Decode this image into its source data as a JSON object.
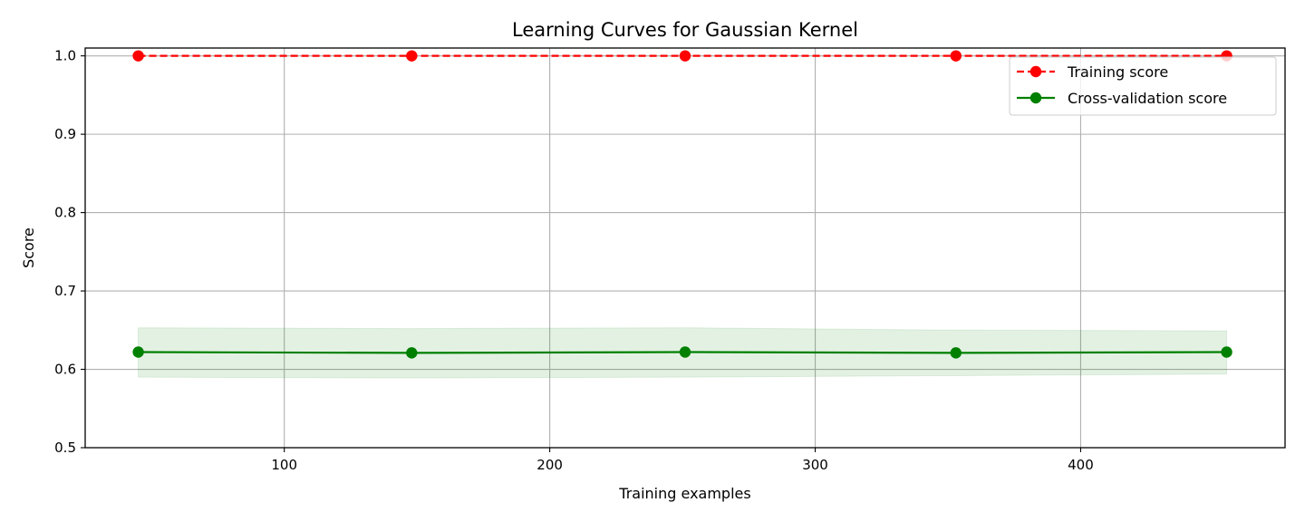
{
  "chart_data": {
    "type": "line",
    "title": "Learning Curves for Gaussian Kernel",
    "xlabel": "Training examples",
    "ylabel": "Score",
    "xlim": [
      25,
      477
    ],
    "ylim": [
      0.5,
      1.01
    ],
    "xticks": [
      100,
      200,
      300,
      400
    ],
    "xtick_labels": [
      "100",
      "200",
      "300",
      "400"
    ],
    "yticks": [
      0.5,
      0.6,
      0.7,
      0.8,
      0.9,
      1.0
    ],
    "ytick_labels": [
      "0.5",
      "0.6",
      "0.7",
      "0.8",
      "0.9",
      "1.0"
    ],
    "grid": true,
    "legend_position": "top-right",
    "x": [
      45,
      148,
      251,
      353,
      455
    ],
    "series": [
      {
        "name": "Training score",
        "color": "#ff0000",
        "line_style": "dashed",
        "marker": "circle",
        "values": [
          1.0,
          1.0,
          1.0,
          1.0,
          1.0
        ],
        "band_lower": [
          1.0,
          1.0,
          1.0,
          1.0,
          1.0
        ],
        "band_upper": [
          1.0,
          1.0,
          1.0,
          1.0,
          1.0
        ]
      },
      {
        "name": "Cross-validation score",
        "color": "#008000",
        "line_style": "solid",
        "marker": "circle",
        "values": [
          0.622,
          0.621,
          0.622,
          0.621,
          0.622
        ],
        "band_lower": [
          0.59,
          0.589,
          0.59,
          0.592,
          0.594
        ],
        "band_upper": [
          0.653,
          0.652,
          0.653,
          0.65,
          0.649
        ]
      }
    ]
  }
}
